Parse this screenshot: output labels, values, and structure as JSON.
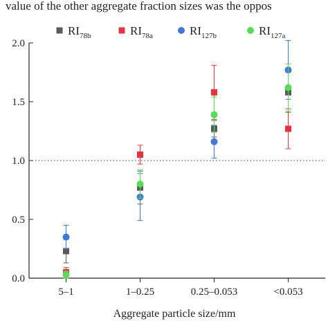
{
  "caption_fragment": "value of the other aggregate fraction sizes was the oppos",
  "chart_data": {
    "type": "scatter",
    "xlabel": "Aggregate particle size/mm",
    "ylabel": "",
    "categories": [
      "5–1",
      "1–0.25",
      "0.25–0.053",
      "<0.053"
    ],
    "ylim": [
      0,
      2.0
    ],
    "yticks": [
      "0.0",
      "0.5",
      "1.0",
      "1.5",
      "2.0"
    ],
    "reference_line": {
      "y": 1.0,
      "style": "dotted"
    },
    "legend_position": "top",
    "series": [
      {
        "name": "RI",
        "sub": "78b",
        "marker": "square",
        "color": "#5a5a5a",
        "values": [
          0.23,
          0.77,
          1.27,
          1.58
        ],
        "errors": [
          0.1,
          0.14,
          0.07,
          0.17
        ]
      },
      {
        "name": "RI",
        "sub": "78a",
        "marker": "square",
        "color": "#e8323c",
        "values": [
          0.05,
          1.05,
          1.58,
          1.27
        ],
        "errors": [
          0.04,
          0.08,
          0.23,
          0.17
        ]
      },
      {
        "name": "RI",
        "sub": "127b",
        "marker": "circle",
        "color": "#3f78d8",
        "values": [
          0.35,
          0.69,
          1.16,
          1.77
        ],
        "errors": [
          0.1,
          0.2,
          0.14,
          0.25
        ]
      },
      {
        "name": "RI",
        "sub": "127a",
        "marker": "circle",
        "color": "#55dd55",
        "values": [
          0.03,
          0.8,
          1.39,
          1.62
        ],
        "errors": [
          0.03,
          0.12,
          0.15,
          0.2
        ]
      }
    ]
  }
}
